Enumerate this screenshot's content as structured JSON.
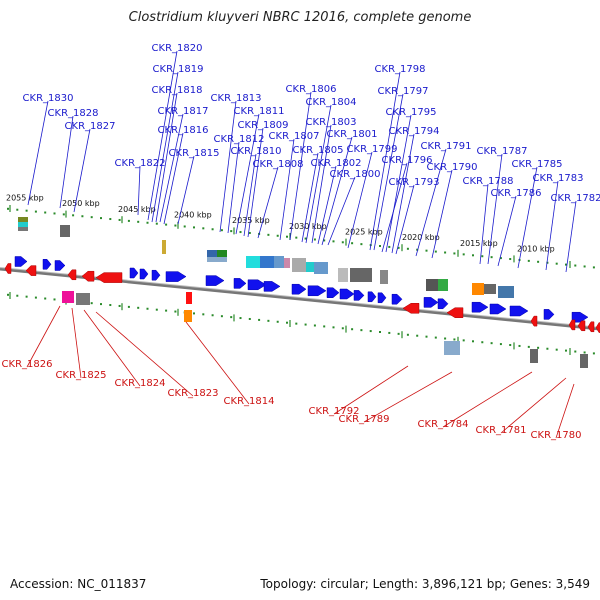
{
  "title": "Clostridium kluyveri NBRC 12016, complete genome",
  "footer": {
    "accession": "Accession: NC_011837",
    "summary": "Topology: circular; Length: 3,896,121 bp; Genes: 3,549"
  },
  "colors": {
    "forward_gene": "#1111ee",
    "reverse_gene": "#ee1111",
    "forward_label": "#1a1acc",
    "reverse_label": "#cc1111",
    "backbone": "#888888",
    "ticks": "#2a8a2a"
  },
  "scale_labels": [
    "2055 kbp",
    "2050 kbp",
    "2045 kbp",
    "2040 kbp",
    "2035 kbp",
    "2030 kbp",
    "2025 kbp",
    "2020 kbp",
    "2015 kbp",
    "2010 kbp"
  ],
  "forward_genes": [
    "CKR_1830",
    "CKR_1828",
    "CKR_1827",
    "CKR_1822",
    "CKR_1820",
    "CKR_1819",
    "CKR_1818",
    "CKR_1817",
    "CKR_1816",
    "CKR_1815",
    "CKR_1813",
    "CKR_1812",
    "CKR_1811",
    "CKR_1810",
    "CKR_1809",
    "CKR_1808",
    "CKR_1807",
    "CKR_1806",
    "CKR_1805",
    "CKR_1804",
    "CKR_1803",
    "CKR_1802",
    "CKR_1801",
    "CKR_1800",
    "CKR_1799",
    "CKR_1798",
    "CKR_1797",
    "CKR_1796",
    "CKR_1795",
    "CKR_1794",
    "CKR_1793",
    "CKR_1791",
    "CKR_1790",
    "CKR_1788",
    "CKR_1787",
    "CKR_1786",
    "CKR_1785",
    "CKR_1783",
    "CKR_1782"
  ],
  "reverse_genes": [
    "CKR_1826",
    "CKR_1825",
    "CKR_1824",
    "CKR_1823",
    "CKR_1814",
    "CKR_1792",
    "CKR_1789",
    "CKR_1784",
    "CKR_1781",
    "CKR_1780"
  ]
}
